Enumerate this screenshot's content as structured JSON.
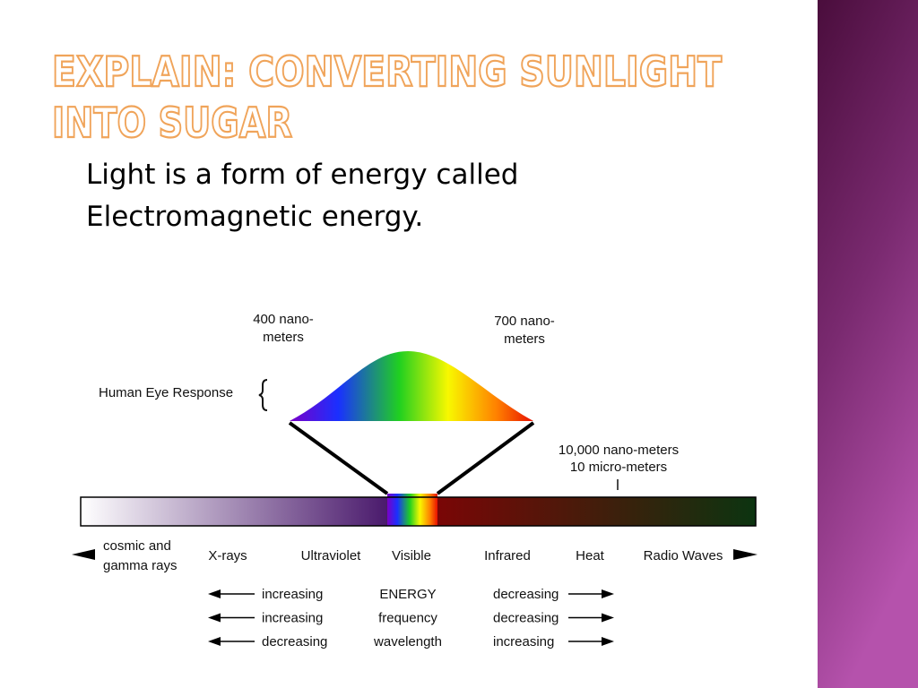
{
  "slide": {
    "title": [
      "EXPLAIN: CONVERTING SUNLIGHT",
      "INTO SUGAR"
    ],
    "body": [
      "Light is a form of energy called",
      "Electromagnetic energy."
    ]
  },
  "diagram": {
    "wavelength_labels": [
      [
        "400 nano-",
        "meters"
      ],
      [
        "700 nano-",
        "meters"
      ]
    ],
    "eye_response": "Human Eye Response",
    "scale_note": [
      "10,000 nano-meters",
      "10 micro-meters"
    ],
    "regions": [
      [
        "cosmic and",
        "gamma rays"
      ],
      [
        "X-rays"
      ],
      [
        "Ultraviolet"
      ],
      [
        "Visible"
      ],
      [
        "Infrared"
      ],
      [
        "Heat"
      ],
      [
        "Radio Waves"
      ]
    ],
    "trends": [
      {
        "left": "increasing",
        "property": "ENERGY",
        "right": "decreasing"
      },
      {
        "left": "increasing",
        "property": "frequency",
        "right": "decreasing"
      },
      {
        "left": "decreasing",
        "property": "wavelength",
        "right": "increasing"
      }
    ]
  }
}
